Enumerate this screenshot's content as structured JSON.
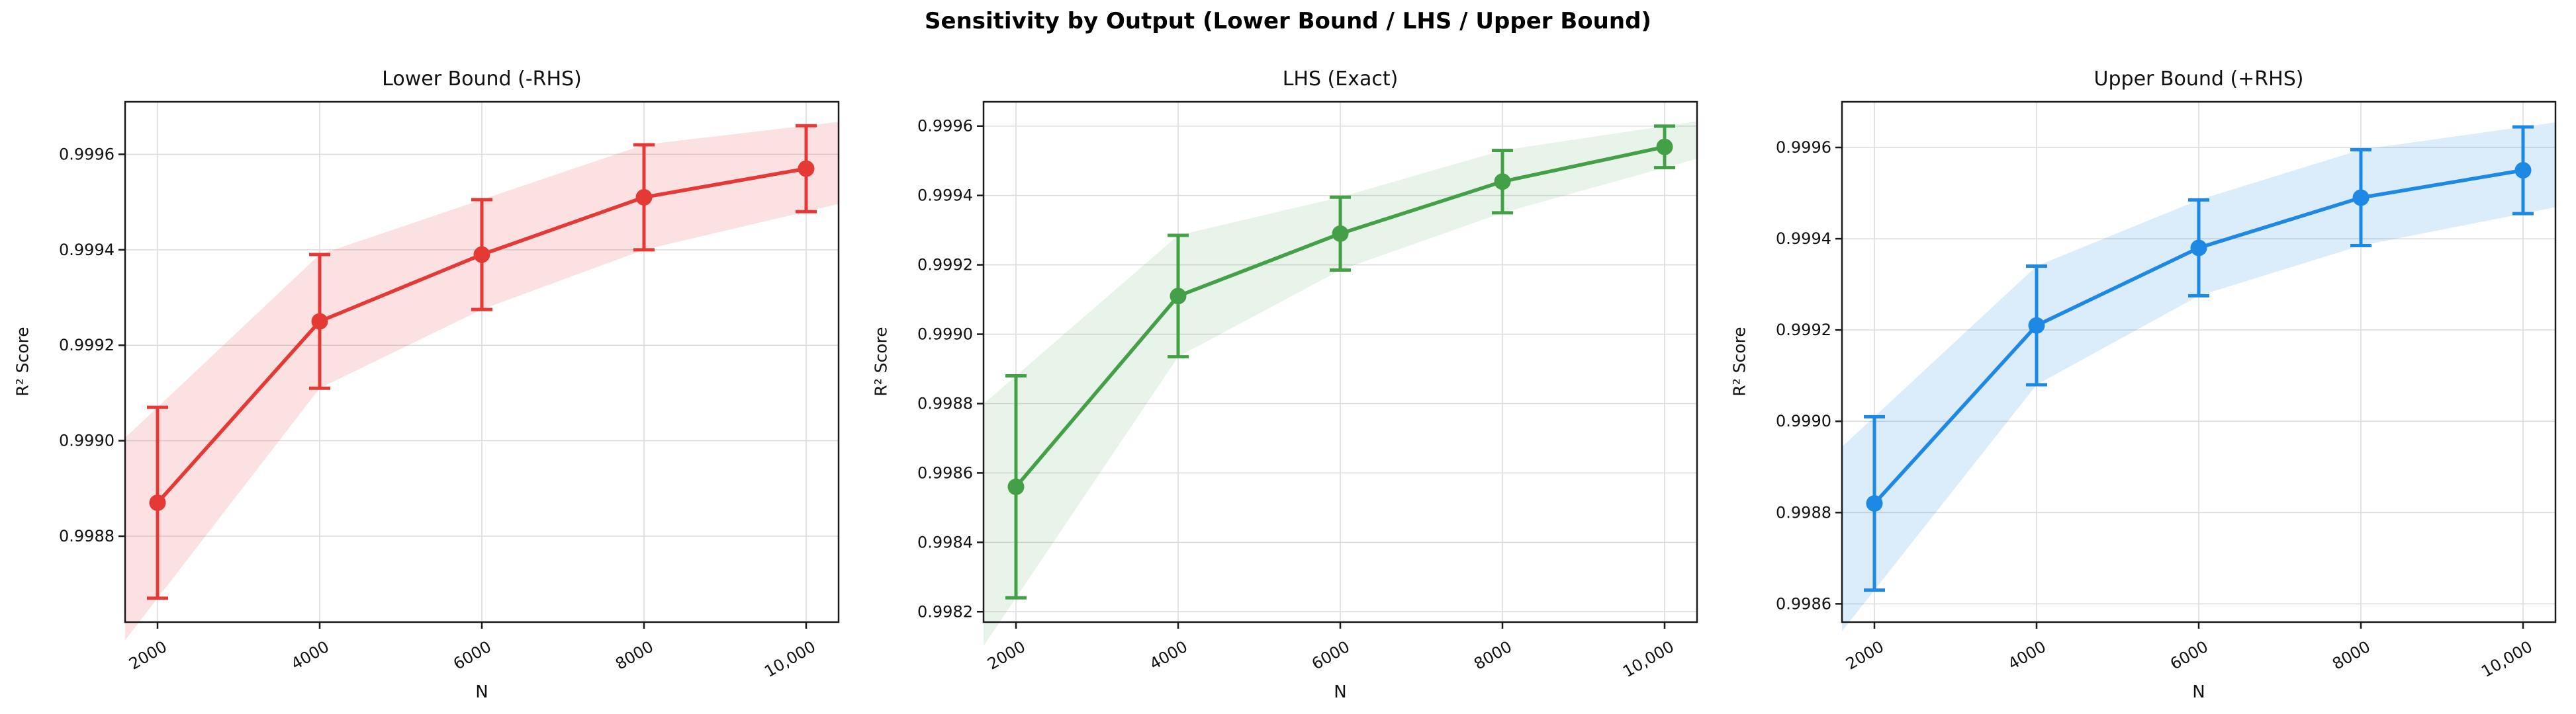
{
  "figure": {
    "title": "Sensitivity by Output (Lower Bound / LHS / Upper Bound)"
  },
  "chart_data": [
    {
      "type": "line",
      "title": "Lower Bound (-RHS)",
      "xlabel": "N",
      "ylabel": "R² Score",
      "color": "#e53935",
      "band_opacity": 0.15,
      "x": [
        2000,
        4000,
        6000,
        8000,
        10000
      ],
      "x_tick_labels": [
        "2000",
        "4000",
        "6000",
        "8000",
        "10,000"
      ],
      "y": [
        0.99887,
        0.99925,
        0.99939,
        0.99951,
        0.99957
      ],
      "yerr": [
        0.0002,
        0.00014,
        0.000115,
        0.00011,
        9e-05
      ],
      "y_ticks": [
        0.9988,
        0.999,
        0.9992,
        0.9994,
        0.9996
      ],
      "ylim": [
        0.99862,
        0.99971
      ],
      "xlim": [
        1600,
        10400
      ],
      "grid": true,
      "legend": "none"
    },
    {
      "type": "line",
      "title": "LHS (Exact)",
      "xlabel": "N",
      "ylabel": "R² Score",
      "color": "#43a047",
      "band_opacity": 0.12,
      "x": [
        2000,
        4000,
        6000,
        8000,
        10000
      ],
      "x_tick_labels": [
        "2000",
        "4000",
        "6000",
        "8000",
        "10,000"
      ],
      "y": [
        0.99856,
        0.99911,
        0.99929,
        0.99944,
        0.99954
      ],
      "yerr": [
        0.00032,
        0.000175,
        0.000105,
        9e-05,
        6e-05
      ],
      "y_ticks": [
        0.9982,
        0.9984,
        0.9986,
        0.9988,
        0.999,
        0.9992,
        0.9994,
        0.9996
      ],
      "ylim": [
        0.99817,
        0.99967
      ],
      "xlim": [
        1600,
        10400
      ],
      "grid": true,
      "legend": "none"
    },
    {
      "type": "line",
      "title": "Upper Bound (+RHS)",
      "xlabel": "N",
      "ylabel": "R² Score",
      "color": "#1e88e5",
      "band_opacity": 0.16,
      "x": [
        2000,
        4000,
        6000,
        8000,
        10000
      ],
      "x_tick_labels": [
        "2000",
        "4000",
        "6000",
        "8000",
        "10,000"
      ],
      "y": [
        0.99882,
        0.99921,
        0.99938,
        0.99949,
        0.99955
      ],
      "yerr": [
        0.00019,
        0.00013,
        0.000105,
        0.000105,
        9.5e-05
      ],
      "y_ticks": [
        0.9986,
        0.9988,
        0.999,
        0.9992,
        0.9994,
        0.9996
      ],
      "ylim": [
        0.99856,
        0.9997
      ],
      "xlim": [
        1600,
        10400
      ],
      "grid": true,
      "legend": "none"
    }
  ]
}
